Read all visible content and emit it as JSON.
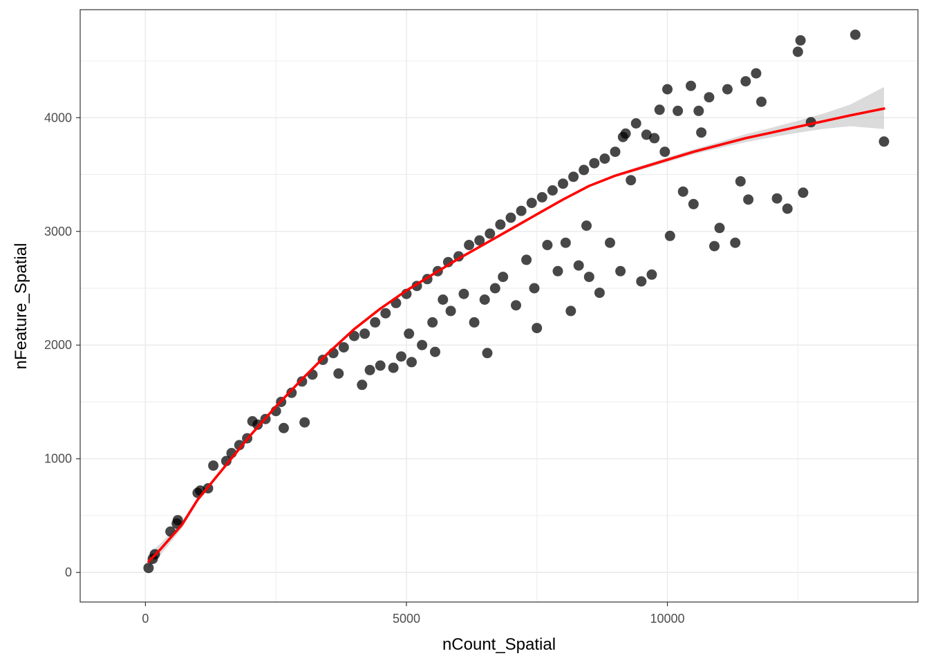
{
  "chart_data": {
    "type": "scatter",
    "title": "",
    "xlabel": "nCount_Spatial",
    "ylabel": "nFeature_Spatial",
    "xlim": [
      -1250,
      14800
    ],
    "ylim": [
      -260,
      4950
    ],
    "x_ticks": [
      0,
      5000,
      10000
    ],
    "x_tick_labels": [
      "0",
      "5000",
      "10000"
    ],
    "y_ticks": [
      0,
      1000,
      2000,
      3000,
      4000
    ],
    "y_tick_labels": [
      "0",
      "1000",
      "2000",
      "3000",
      "4000"
    ],
    "x_minor_ticks": [
      2500,
      7500,
      12500
    ],
    "y_minor_ticks": [
      500,
      1500,
      2500,
      3500,
      4500
    ],
    "grid": true,
    "legend": "none",
    "colors": {
      "points": "#000000",
      "fit_line": "#ff0000",
      "confidence_band": "#bebebe",
      "grid": "#ebebeb",
      "panel_border": "#333333"
    },
    "series": [
      {
        "type": "scatter",
        "points": [
          [
            60,
            40
          ],
          [
            140,
            120
          ],
          [
            180,
            160
          ],
          [
            480,
            360
          ],
          [
            600,
            430
          ],
          [
            620,
            460
          ],
          [
            1000,
            700
          ],
          [
            1050,
            720
          ],
          [
            1200,
            740
          ],
          [
            1300,
            940
          ],
          [
            1550,
            980
          ],
          [
            1650,
            1050
          ],
          [
            1800,
            1120
          ],
          [
            1950,
            1180
          ],
          [
            2050,
            1330
          ],
          [
            2150,
            1300
          ],
          [
            2300,
            1350
          ],
          [
            2500,
            1420
          ],
          [
            2600,
            1500
          ],
          [
            2650,
            1270
          ],
          [
            2800,
            1580
          ],
          [
            3000,
            1680
          ],
          [
            3050,
            1320
          ],
          [
            3200,
            1740
          ],
          [
            3400,
            1870
          ],
          [
            3600,
            1930
          ],
          [
            3700,
            1750
          ],
          [
            3800,
            1980
          ],
          [
            4000,
            2080
          ],
          [
            4150,
            1650
          ],
          [
            4200,
            2100
          ],
          [
            4300,
            1780
          ],
          [
            4400,
            2200
          ],
          [
            4500,
            1820
          ],
          [
            4600,
            2280
          ],
          [
            4750,
            1800
          ],
          [
            4800,
            2370
          ],
          [
            4900,
            1900
          ],
          [
            5000,
            2450
          ],
          [
            5050,
            2100
          ],
          [
            5100,
            1850
          ],
          [
            5200,
            2520
          ],
          [
            5300,
            2000
          ],
          [
            5400,
            2580
          ],
          [
            5500,
            2200
          ],
          [
            5550,
            1940
          ],
          [
            5600,
            2650
          ],
          [
            5700,
            2400
          ],
          [
            5800,
            2730
          ],
          [
            5850,
            2300
          ],
          [
            6000,
            2780
          ],
          [
            6100,
            2450
          ],
          [
            6200,
            2880
          ],
          [
            6300,
            2200
          ],
          [
            6400,
            2920
          ],
          [
            6500,
            2400
          ],
          [
            6550,
            1930
          ],
          [
            6600,
            2980
          ],
          [
            6700,
            2500
          ],
          [
            6800,
            3060
          ],
          [
            6850,
            2600
          ],
          [
            7000,
            3120
          ],
          [
            7100,
            2350
          ],
          [
            7200,
            3180
          ],
          [
            7300,
            2750
          ],
          [
            7400,
            3250
          ],
          [
            7450,
            2500
          ],
          [
            7500,
            2150
          ],
          [
            7600,
            3300
          ],
          [
            7700,
            2880
          ],
          [
            7800,
            3360
          ],
          [
            7900,
            2650
          ],
          [
            8000,
            3420
          ],
          [
            8050,
            2900
          ],
          [
            8150,
            2300
          ],
          [
            8200,
            3480
          ],
          [
            8300,
            2700
          ],
          [
            8400,
            3540
          ],
          [
            8450,
            3050
          ],
          [
            8500,
            2600
          ],
          [
            8600,
            3600
          ],
          [
            8700,
            2460
          ],
          [
            8800,
            3640
          ],
          [
            8900,
            2900
          ],
          [
            9000,
            3700
          ],
          [
            9100,
            2650
          ],
          [
            9150,
            3830
          ],
          [
            9200,
            3860
          ],
          [
            9300,
            3450
          ],
          [
            9400,
            3950
          ],
          [
            9500,
            2560
          ],
          [
            9600,
            3850
          ],
          [
            9700,
            2620
          ],
          [
            9750,
            3820
          ],
          [
            9850,
            4070
          ],
          [
            9950,
            3700
          ],
          [
            10000,
            4250
          ],
          [
            10050,
            2960
          ],
          [
            10200,
            4060
          ],
          [
            10300,
            3350
          ],
          [
            10450,
            4280
          ],
          [
            10500,
            3240
          ],
          [
            10600,
            4060
          ],
          [
            10650,
            3870
          ],
          [
            10800,
            4180
          ],
          [
            10900,
            2870
          ],
          [
            11000,
            3030
          ],
          [
            11150,
            4250
          ],
          [
            11300,
            2900
          ],
          [
            11400,
            3440
          ],
          [
            11500,
            4320
          ],
          [
            11550,
            3280
          ],
          [
            11700,
            4390
          ],
          [
            11800,
            4140
          ],
          [
            12100,
            3290
          ],
          [
            12300,
            3200
          ],
          [
            12500,
            4580
          ],
          [
            12550,
            4680
          ],
          [
            12600,
            3340
          ],
          [
            12750,
            3960
          ],
          [
            13600,
            4730
          ],
          [
            14150,
            3790
          ]
        ]
      },
      {
        "type": "line",
        "name": "",
        "points": [
          [
            60,
            95
          ],
          [
            300,
            210
          ],
          [
            700,
            420
          ],
          [
            1000,
            640
          ],
          [
            1500,
            920
          ],
          [
            2000,
            1200
          ],
          [
            2500,
            1460
          ],
          [
            3000,
            1700
          ],
          [
            3500,
            1930
          ],
          [
            4000,
            2140
          ],
          [
            4500,
            2320
          ],
          [
            5000,
            2480
          ],
          [
            5500,
            2620
          ],
          [
            6000,
            2760
          ],
          [
            6500,
            2890
          ],
          [
            7000,
            3020
          ],
          [
            7500,
            3150
          ],
          [
            8000,
            3280
          ],
          [
            8500,
            3400
          ],
          [
            9000,
            3490
          ],
          [
            9500,
            3560
          ],
          [
            10000,
            3630
          ],
          [
            10500,
            3700
          ],
          [
            11000,
            3760
          ],
          [
            11500,
            3820
          ],
          [
            12000,
            3870
          ],
          [
            12500,
            3920
          ],
          [
            13000,
            3970
          ],
          [
            13500,
            4020
          ],
          [
            14150,
            4080
          ]
        ]
      }
    ],
    "band": {
      "x": [
        60,
        300,
        700,
        1000,
        1500,
        2000,
        2500,
        3000,
        3500,
        4000,
        4500,
        5000,
        5500,
        6000,
        6500,
        7000,
        7500,
        8000,
        8500,
        9000,
        9500,
        10000,
        10500,
        11000,
        11500,
        12000,
        12500,
        13000,
        13500,
        14150
      ],
      "lower": [
        30,
        160,
        390,
        620,
        905,
        1188,
        1450,
        1692,
        1922,
        2133,
        2314,
        2474,
        2614,
        2753,
        2883,
        3012,
        3142,
        3271,
        3391,
        3478,
        3542,
        3610,
        3678,
        3733,
        3785,
        3828,
        3867,
        3902,
        3925,
        3900
      ],
      "upper": [
        160,
        260,
        450,
        660,
        935,
        1212,
        1470,
        1708,
        1938,
        2147,
        2326,
        2486,
        2626,
        2767,
        2897,
        3028,
        3158,
        3289,
        3409,
        3502,
        3578,
        3650,
        3722,
        3787,
        3855,
        3912,
        3973,
        4038,
        4115,
        4270
      ]
    }
  }
}
